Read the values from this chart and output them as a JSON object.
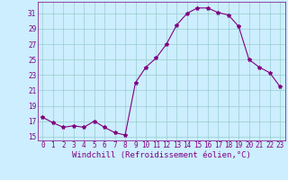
{
  "hours": [
    0,
    1,
    2,
    3,
    4,
    5,
    6,
    7,
    8,
    9,
    10,
    11,
    12,
    13,
    14,
    15,
    16,
    17,
    18,
    19,
    20,
    21,
    22,
    23
  ],
  "windchill": [
    17.5,
    16.8,
    16.2,
    16.4,
    16.2,
    17.0,
    16.2,
    15.5,
    15.2,
    22.0,
    24.0,
    25.2,
    27.0,
    29.5,
    31.0,
    31.7,
    31.7,
    31.1,
    30.8,
    29.3,
    25.0,
    24.0,
    23.3,
    21.5
  ],
  "line_color": "#800080",
  "marker": "*",
  "marker_size": 3,
  "background_color": "#cceeff",
  "grid_color": "#99cccc",
  "xlabel": "Windchill (Refroidissement éolien,°C)",
  "ylabel": "",
  "xlim": [
    -0.5,
    23.5
  ],
  "ylim": [
    14.5,
    32.5
  ],
  "yticks": [
    15,
    17,
    19,
    21,
    23,
    25,
    27,
    29,
    31
  ],
  "xticks": [
    0,
    1,
    2,
    3,
    4,
    5,
    6,
    7,
    8,
    9,
    10,
    11,
    12,
    13,
    14,
    15,
    16,
    17,
    18,
    19,
    20,
    21,
    22,
    23
  ],
  "tick_color": "#800080",
  "label_color": "#800080",
  "tick_fontsize": 5.5,
  "xlabel_fontsize": 6.5,
  "line_width": 0.8
}
